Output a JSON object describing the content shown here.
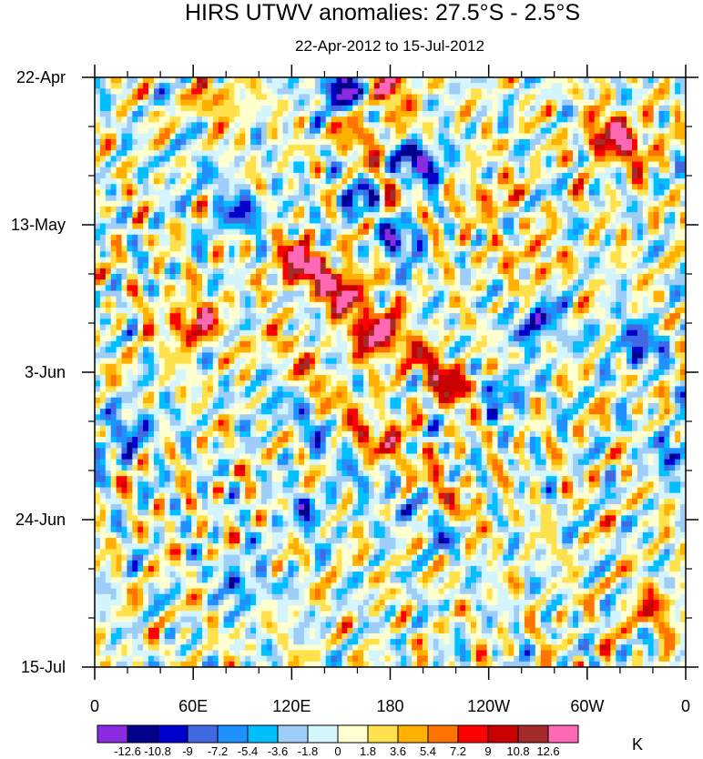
{
  "chart_data": {
    "type": "heatmap",
    "title": "HIRS UTWV anomalies: 27.5°S - 2.5°S",
    "subtitle": "22-Apr-2012 to 15-Jul-2012",
    "xlabel": "",
    "ylabel": "",
    "x_ticks": [
      "0",
      "60E",
      "120E",
      "180",
      "120W",
      "60W",
      "0"
    ],
    "x_range_deg_east": [
      0,
      360
    ],
    "y_ticks": [
      "22-Apr",
      "13-May",
      "3-Jun",
      "24-Jun",
      "15-Jul"
    ],
    "time_range": [
      "22-Apr-2012",
      "15-Jul-2012"
    ],
    "time_days": 84,
    "contour_levels": [
      -12.6,
      -10.8,
      -9,
      -7.2,
      -5.4,
      -3.6,
      -1.8,
      0,
      1.8,
      3.6,
      5.4,
      7.2,
      9,
      10.8,
      12.6
    ],
    "colorbar_labels": [
      "-12.6",
      "-10.8",
      "-9",
      "-7.2",
      "-5.4",
      "-3.6",
      "-1.8",
      "0",
      "1.8",
      "3.6",
      "5.4",
      "7.2",
      "9",
      "10.8",
      "12.6"
    ],
    "colorbar_colors": [
      "#8a2be2",
      "#00008b",
      "#0000cd",
      "#4169e1",
      "#1e90ff",
      "#00bfff",
      "#9ecdf7",
      "#d4f5fd",
      "#ffffd0",
      "#ffe14d",
      "#ffb000",
      "#ff7400",
      "#ff0000",
      "#c90000",
      "#a52a2a",
      "#ff69b4"
    ],
    "units": "K",
    "features": [
      {
        "lon": 60,
        "day": 35,
        "value": 10.5
      },
      {
        "lon": 125,
        "day": 27,
        "value": 9.8
      },
      {
        "lon": 150,
        "day": 30,
        "value": 8.5
      },
      {
        "lon": 170,
        "day": 37,
        "value": 9.0
      },
      {
        "lon": 175,
        "day": 7,
        "value": 8.0
      },
      {
        "lon": 178,
        "day": 1,
        "value": 9.0
      },
      {
        "lon": 313,
        "day": 8,
        "value": 9.0
      },
      {
        "lon": 326,
        "day": 10,
        "value": 7.5
      },
      {
        "lon": 240,
        "day": 17,
        "value": 5.0
      },
      {
        "lon": 265,
        "day": 26,
        "value": 5.2
      },
      {
        "lon": 340,
        "day": 76,
        "value": 6.5
      },
      {
        "lon": 170,
        "day": 52,
        "value": 5.0
      },
      {
        "lon": 215,
        "day": 44,
        "value": 5.0
      },
      {
        "lon": 75,
        "day": 3,
        "value": 5.5
      },
      {
        "lon": 190,
        "day": 23,
        "value": -9.5
      },
      {
        "lon": 270,
        "day": 35,
        "value": -9.0
      },
      {
        "lon": 330,
        "day": 38,
        "value": -9.0
      },
      {
        "lon": 150,
        "day": 2,
        "value": -8.5
      },
      {
        "lon": 195,
        "day": 12,
        "value": -8.0
      },
      {
        "lon": 95,
        "day": 20,
        "value": -7.5
      },
      {
        "lon": 355,
        "day": 53,
        "value": -7.0
      },
      {
        "lon": 25,
        "day": 50,
        "value": -6.5
      },
      {
        "lon": 250,
        "day": 45,
        "value": -6.5
      },
      {
        "lon": 90,
        "day": 72,
        "value": -6.5
      },
      {
        "lon": 160,
        "day": 17,
        "value": -6.0
      },
      {
        "lon": 130,
        "day": 62,
        "value": -5.5
      }
    ],
    "bands": [
      {
        "lon_start": 100,
        "day_start": 22,
        "lon_end": 220,
        "day_end": 44,
        "value": 6.5,
        "width_deg": 7
      },
      {
        "lon_start": 110,
        "day_start": 38,
        "lon_end": 225,
        "day_end": 62,
        "value": 4.5,
        "width_deg": 7
      },
      {
        "lon_start": 150,
        "day_start": 8,
        "lon_end": 215,
        "day_end": 24,
        "value": 4.5,
        "width_deg": 6
      },
      {
        "lon_start": 105,
        "day_start": 45,
        "lon_end": 215,
        "day_end": 66,
        "value": -4.5,
        "width_deg": 7
      },
      {
        "lon_start": 145,
        "day_start": 0,
        "lon_end": 210,
        "day_end": 14,
        "value": -5.0,
        "width_deg": 6
      },
      {
        "lon_start": 55,
        "day_start": 12,
        "lon_end": 130,
        "day_end": 30,
        "value": -3.0,
        "width_deg": 8
      }
    ]
  }
}
